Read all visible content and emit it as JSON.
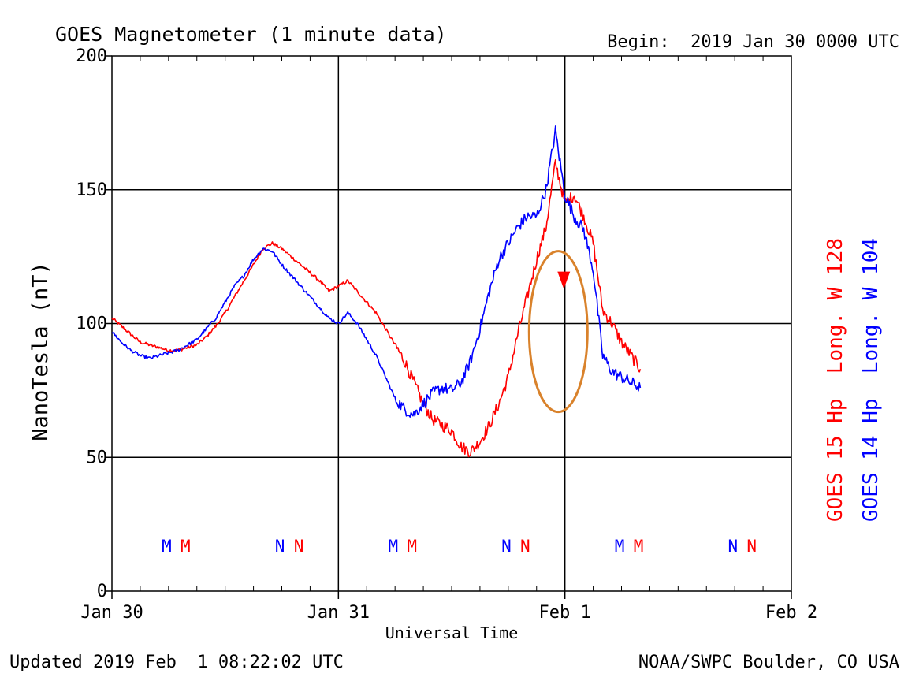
{
  "chart_data": {
    "type": "line",
    "title": "GOES Magnetometer (1 minute data)",
    "begin_label": "Begin:  2019 Jan 30 0000 UTC",
    "xlabel": "Universal Time",
    "ylabel": "NanoTesla (nT)",
    "ylim": [
      0,
      200
    ],
    "xlim_hours": [
      0,
      72
    ],
    "y_ticks": [
      "0",
      "50",
      "100",
      "150",
      "200"
    ],
    "x_ticks": [
      {
        "hour": 0,
        "label": "Jan 30"
      },
      {
        "hour": 24,
        "label": "Jan 31"
      },
      {
        "hour": 48,
        "label": "Feb 1"
      },
      {
        "hour": 72,
        "label": "Feb 2"
      }
    ],
    "grid": true,
    "minor_x_ticks_hours": [
      3,
      6,
      9,
      12,
      15,
      18,
      21,
      27,
      30,
      33,
      36,
      39,
      42,
      45,
      51,
      54,
      57,
      60,
      63,
      66,
      69
    ],
    "series": [
      {
        "name": "GOES 15 Hp  Long. W 128",
        "color": "#ff0000",
        "x": [
          0,
          1,
          2,
          3,
          4,
          5,
          6,
          7,
          8,
          9,
          10,
          11,
          12,
          13,
          14,
          15,
          16,
          17,
          18,
          19,
          20,
          21,
          22,
          23,
          24,
          25,
          26,
          27,
          28,
          29,
          30,
          31,
          32,
          33,
          34,
          35,
          36,
          37,
          38,
          39,
          40,
          41,
          42,
          43,
          44,
          45,
          46,
          47,
          48,
          49,
          50,
          51,
          52,
          53,
          54,
          55,
          56
        ],
        "values": [
          102,
          99,
          96,
          93,
          92,
          91,
          90,
          90,
          91,
          92,
          95,
          99,
          104,
          110,
          116,
          122,
          128,
          130,
          128,
          125,
          122,
          119,
          116,
          112,
          114,
          116,
          112,
          108,
          104,
          98,
          92,
          86,
          78,
          70,
          64,
          62,
          60,
          54,
          52,
          56,
          62,
          70,
          80,
          96,
          110,
          124,
          136,
          160,
          145,
          148,
          140,
          130,
          105,
          100,
          93,
          88,
          83
        ]
      },
      {
        "name": "GOES 14 Hp  Long. W 104",
        "color": "#0000ff",
        "x": [
          0,
          1,
          2,
          3,
          4,
          5,
          6,
          7,
          8,
          9,
          10,
          11,
          12,
          13,
          14,
          15,
          16,
          17,
          18,
          19,
          20,
          21,
          22,
          23,
          24,
          25,
          26,
          27,
          28,
          29,
          30,
          31,
          32,
          33,
          34,
          35,
          36,
          37,
          38,
          39,
          40,
          41,
          42,
          43,
          44,
          45,
          46,
          47,
          48,
          49,
          50,
          51,
          52,
          53,
          54,
          55,
          56
        ],
        "values": [
          97,
          93,
          90,
          88,
          87,
          88,
          89,
          90,
          92,
          94,
          98,
          102,
          108,
          114,
          118,
          124,
          128,
          127,
          122,
          118,
          114,
          110,
          106,
          102,
          100,
          104,
          100,
          94,
          88,
          80,
          72,
          68,
          66,
          70,
          74,
          76,
          75,
          78,
          86,
          98,
          112,
          124,
          130,
          136,
          140,
          140,
          150,
          172,
          148,
          140,
          135,
          120,
          88,
          82,
          80,
          78,
          76
        ]
      }
    ],
    "markers": [
      {
        "label": "M",
        "color": "#0000ff",
        "hour": 5.8
      },
      {
        "label": "M",
        "color": "#ff0000",
        "hour": 7.8
      },
      {
        "label": "N",
        "color": "#0000ff",
        "hour": 17.8
      },
      {
        "label": "N",
        "color": "#ff0000",
        "hour": 19.8
      },
      {
        "label": "M",
        "color": "#0000ff",
        "hour": 29.8
      },
      {
        "label": "M",
        "color": "#ff0000",
        "hour": 31.8
      },
      {
        "label": "N",
        "color": "#0000ff",
        "hour": 41.8
      },
      {
        "label": "N",
        "color": "#ff0000",
        "hour": 43.8
      },
      {
        "label": "M",
        "color": "#0000ff",
        "hour": 53.8
      },
      {
        "label": "M",
        "color": "#ff0000",
        "hour": 55.8
      },
      {
        "label": "N",
        "color": "#0000ff",
        "hour": 65.8
      },
      {
        "label": "N",
        "color": "#ff0000",
        "hour": 67.8
      }
    ],
    "annotation": {
      "type": "ellipse",
      "color": "#d9822b",
      "center_hour": 47.3,
      "center_value": 97,
      "arrow_color": "#ff0000"
    },
    "updated_label": "Updated 2019 Feb  1 08:22:02 UTC",
    "credit_label": "NOAA/SWPC Boulder, CO USA"
  }
}
